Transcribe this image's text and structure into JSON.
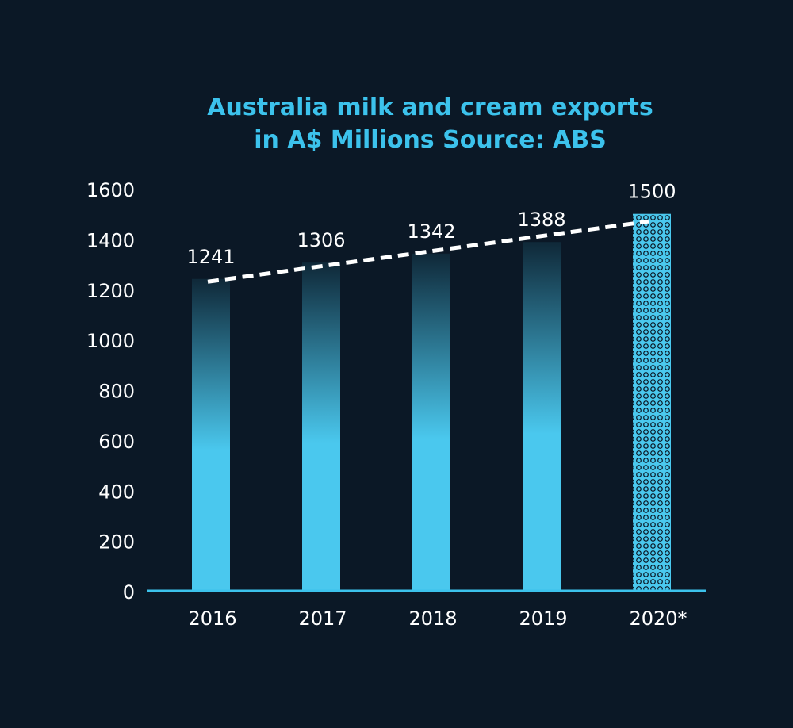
{
  "colors": {
    "background": "#0b1826",
    "bar_top": "#0f2838",
    "bar_bottom": "#4ac8ee",
    "title": "#3cc2ec",
    "text": "#ffffff",
    "trend": "#ffffff",
    "axis": "#3cc2ec"
  },
  "chart_data": {
    "type": "bar",
    "title_lines": [
      "Australia milk and cream exports",
      "in A$ Millions Source: ABS"
    ],
    "categories": [
      "2016",
      "2017",
      "2018",
      "2019",
      "2020*"
    ],
    "values": [
      1241,
      1306,
      1342,
      1388,
      1500
    ],
    "value_labels": [
      "1241",
      "1306",
      "1342",
      "1388",
      "1500"
    ],
    "projected_categories": [
      "2020*"
    ],
    "ylim": [
      0,
      1600
    ],
    "yticks": [
      0,
      200,
      400,
      600,
      800,
      1000,
      1200,
      1400,
      1600
    ],
    "ytick_labels": [
      "0",
      "200",
      "400",
      "600",
      "800",
      "1000",
      "1200",
      "1400",
      "1600"
    ],
    "trendline": {
      "style": "dashed",
      "start_value": 1230,
      "end_value": 1470
    },
    "grid": false,
    "legend": "none",
    "xlabel": "",
    "ylabel": ""
  }
}
